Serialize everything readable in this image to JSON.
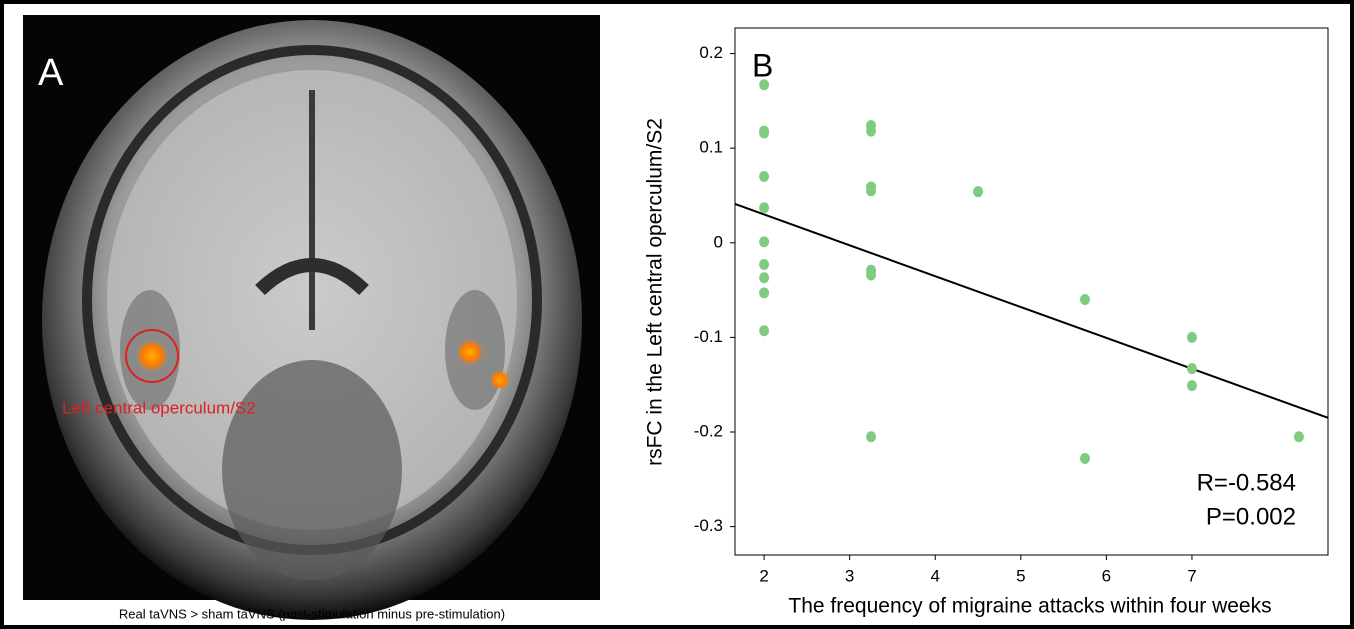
{
  "panel_a": {
    "label": "A",
    "annotation": "Left central operculum/S2",
    "caption": "Real taVNS > sham taVNS (post-stimulation minus pre-stimulation)"
  },
  "chart_data": {
    "type": "scatter",
    "panel_label": "B",
    "x_label": "The frequency of migraine attacks within four weeks",
    "y_label": "rsFC in the Left central operculum/S2",
    "x": [
      2,
      2,
      2,
      2,
      2,
      2,
      2,
      2,
      2,
      2,
      3.25,
      3.25,
      3.25,
      3.25,
      3.25,
      3.25,
      3.25,
      4.5,
      5.75,
      5.75,
      7,
      7,
      7,
      8.25
    ],
    "values": [
      0.167,
      0.118,
      0.116,
      0.07,
      0.037,
      0.001,
      -0.023,
      -0.037,
      -0.053,
      -0.093,
      0.124,
      0.118,
      0.059,
      0.055,
      -0.029,
      -0.034,
      -0.205,
      0.054,
      -0.06,
      -0.228,
      -0.1,
      -0.133,
      -0.151,
      -0.205
    ],
    "color": "#7fcb7f",
    "fit": {
      "x": [
        1.66,
        8.59
      ],
      "y": [
        0.041,
        -0.185
      ]
    },
    "xlim": [
      1.66,
      8.59
    ],
    "xticks": [
      2,
      3,
      4,
      5,
      6,
      7
    ],
    "ylim": [
      -0.33,
      0.227
    ],
    "yticks": [
      0.2,
      0.1,
      0,
      -0.1,
      -0.2,
      -0.3
    ],
    "annotations": [
      "R=-0.584",
      "P=0.002"
    ]
  }
}
